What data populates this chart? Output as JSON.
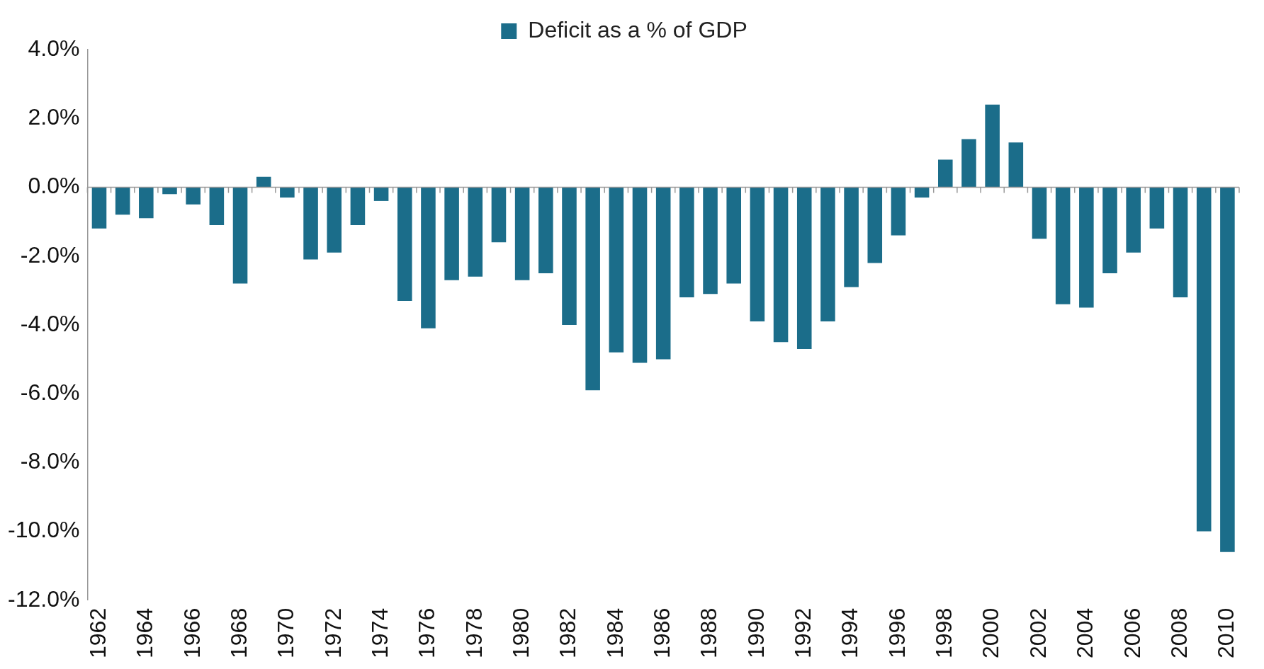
{
  "chart_data": {
    "type": "bar",
    "categories": [
      "1962",
      null,
      "1964",
      null,
      "1966",
      null,
      "1968",
      null,
      "1970",
      null,
      "1972",
      null,
      "1974",
      null,
      "1976",
      null,
      "1978",
      null,
      "1980",
      null,
      "1982",
      null,
      "1984",
      null,
      "1986",
      null,
      "1988",
      null,
      "1990",
      null,
      "1992",
      null,
      "1994",
      null,
      "1996",
      null,
      "1998",
      null,
      "2000",
      null,
      "2002",
      null,
      "2004",
      null,
      "2006",
      null,
      "2008",
      null,
      "2010"
    ],
    "series": [
      {
        "name": "Deficit as a % of GDP",
        "color": "#1b6d8a",
        "values": [
          -1.2,
          -0.8,
          -0.9,
          -0.2,
          -0.5,
          -1.1,
          -2.8,
          0.3,
          -0.3,
          -2.1,
          -1.9,
          -1.1,
          -0.4,
          -3.3,
          -4.1,
          -2.7,
          -2.6,
          -1.6,
          -2.7,
          -2.5,
          -4.0,
          -5.9,
          -4.8,
          -5.1,
          -5.0,
          -3.2,
          -3.1,
          -2.8,
          -3.9,
          -4.5,
          -4.7,
          -3.9,
          -2.9,
          -2.2,
          -1.4,
          -0.3,
          0.8,
          1.4,
          2.4,
          1.3,
          -1.5,
          -3.4,
          -3.5,
          -2.5,
          -1.9,
          -1.2,
          -3.2,
          -10.0,
          -10.6
        ]
      }
    ],
    "ylim": [
      -12,
      4
    ],
    "yticks": [
      {
        "value": -12,
        "label": "-12.0%"
      },
      {
        "value": -10,
        "label": "-10.0%"
      },
      {
        "value": -8,
        "label": "-8.0%"
      },
      {
        "value": -6,
        "label": "-6.0%"
      },
      {
        "value": -4,
        "label": "-4.0%"
      },
      {
        "value": -2,
        "label": "-2.0%"
      },
      {
        "value": 0,
        "label": "0.0%"
      },
      {
        "value": 2,
        "label": "2.0%"
      },
      {
        "value": 4,
        "label": "4.0%"
      }
    ],
    "legend": "top"
  }
}
